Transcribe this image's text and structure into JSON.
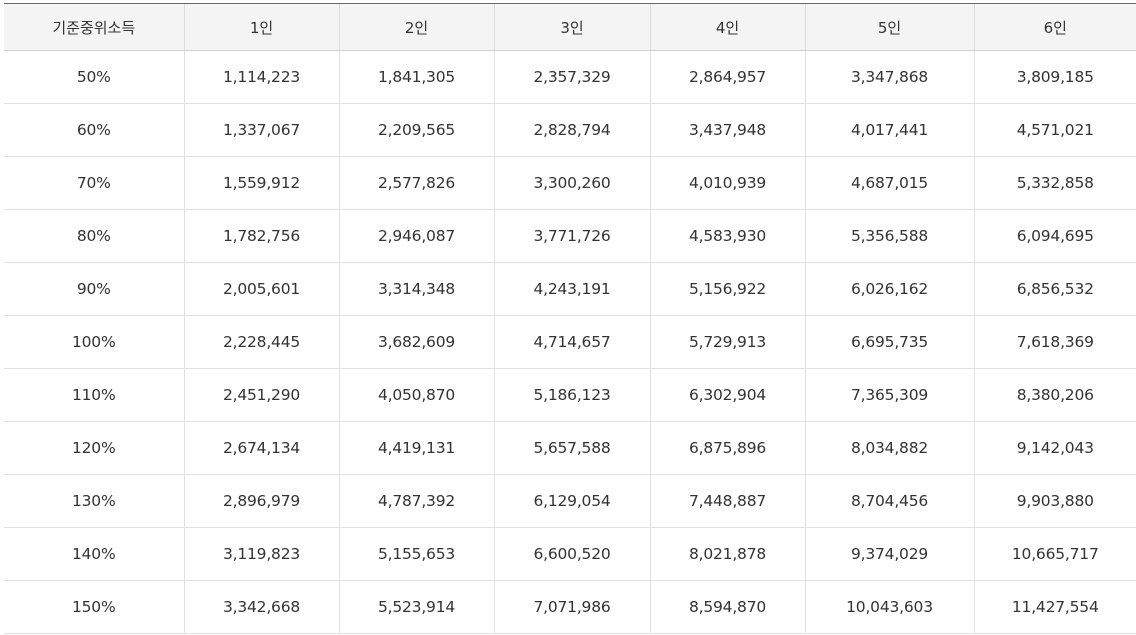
{
  "table": {
    "headers": [
      "기준중위소득",
      "1인",
      "2인",
      "3인",
      "4인",
      "5인",
      "6인"
    ],
    "rows": [
      [
        "50%",
        "1,114,223",
        "1,841,305",
        "2,357,329",
        "2,864,957",
        "3,347,868",
        "3,809,185"
      ],
      [
        "60%",
        "1,337,067",
        "2,209,565",
        "2,828,794",
        "3,437,948",
        "4,017,441",
        "4,571,021"
      ],
      [
        "70%",
        "1,559,912",
        "2,577,826",
        "3,300,260",
        "4,010,939",
        "4,687,015",
        "5,332,858"
      ],
      [
        "80%",
        "1,782,756",
        "2,946,087",
        "3,771,726",
        "4,583,930",
        "5,356,588",
        "6,094,695"
      ],
      [
        "90%",
        "2,005,601",
        "3,314,348",
        "4,243,191",
        "5,156,922",
        "6,026,162",
        "6,856,532"
      ],
      [
        "100%",
        "2,228,445",
        "3,682,609",
        "4,714,657",
        "5,729,913",
        "6,695,735",
        "7,618,369"
      ],
      [
        "110%",
        "2,451,290",
        "4,050,870",
        "5,186,123",
        "6,302,904",
        "7,365,309",
        "8,380,206"
      ],
      [
        "120%",
        "2,674,134",
        "4,419,131",
        "5,657,588",
        "6,875,896",
        "8,034,882",
        "9,142,043"
      ],
      [
        "130%",
        "2,896,979",
        "4,787,392",
        "6,129,054",
        "7,448,887",
        "8,704,456",
        "9,903,880"
      ],
      [
        "140%",
        "3,119,823",
        "5,155,653",
        "6,600,520",
        "8,021,878",
        "9,374,029",
        "10,665,717"
      ],
      [
        "150%",
        "3,342,668",
        "5,523,914",
        "7,071,986",
        "8,594,870",
        "10,043,603",
        "11,427,554"
      ]
    ]
  }
}
